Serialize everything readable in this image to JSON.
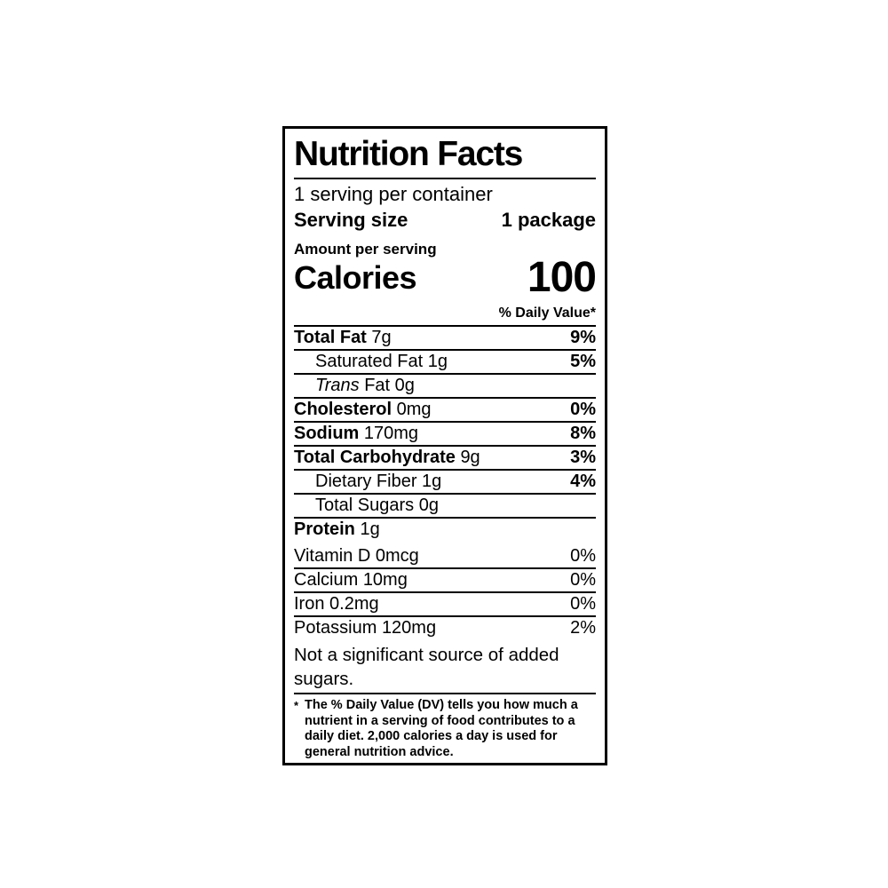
{
  "label": {
    "title": "Nutrition Facts",
    "servings_per_container": "1 serving per container",
    "serving_size": {
      "label": "Serving size",
      "value": "1 package"
    },
    "amount_per_serving": "Amount per serving",
    "calories": {
      "label": "Calories",
      "value": "100"
    },
    "daily_value_header": "% Daily Value*",
    "nutrients": [
      {
        "name": "Total Fat",
        "amount": "7g",
        "dv": "9%"
      },
      {
        "name": "Saturated Fat",
        "amount": "1g",
        "dv": "5%"
      },
      {
        "name_italic": "Trans",
        "name": "Fat",
        "amount": "0g",
        "dv": ""
      },
      {
        "name": "Cholesterol",
        "amount": "0mg",
        "dv": "0%"
      },
      {
        "name": "Sodium",
        "amount": "170mg",
        "dv": "8%"
      },
      {
        "name": "Total Carbohydrate",
        "amount": "9g",
        "dv": "3%"
      },
      {
        "name": "Dietary Fiber",
        "amount": "1g",
        "dv": "4%"
      },
      {
        "name": "Total Sugars",
        "amount": "0g",
        "dv": ""
      },
      {
        "name": "Protein",
        "amount": "1g",
        "dv": ""
      }
    ],
    "micronutrients": [
      {
        "name": "Vitamin D",
        "amount": "0mcg",
        "dv": "0%"
      },
      {
        "name": "Calcium",
        "amount": "10mg",
        "dv": "0%"
      },
      {
        "name": "Iron",
        "amount": "0.2mg",
        "dv": "0%"
      },
      {
        "name": "Potassium",
        "amount": "120mg",
        "dv": "2%"
      }
    ],
    "note": "Not a significant source of added sugars.",
    "footnote_marker": "*",
    "footnote": "The % Daily Value (DV) tells you how much a nutrient in a serving of food contributes to a daily diet. 2,000 calories a day is used for general nutrition advice.",
    "colors": {
      "ink": "#000000",
      "background": "#ffffff"
    }
  }
}
